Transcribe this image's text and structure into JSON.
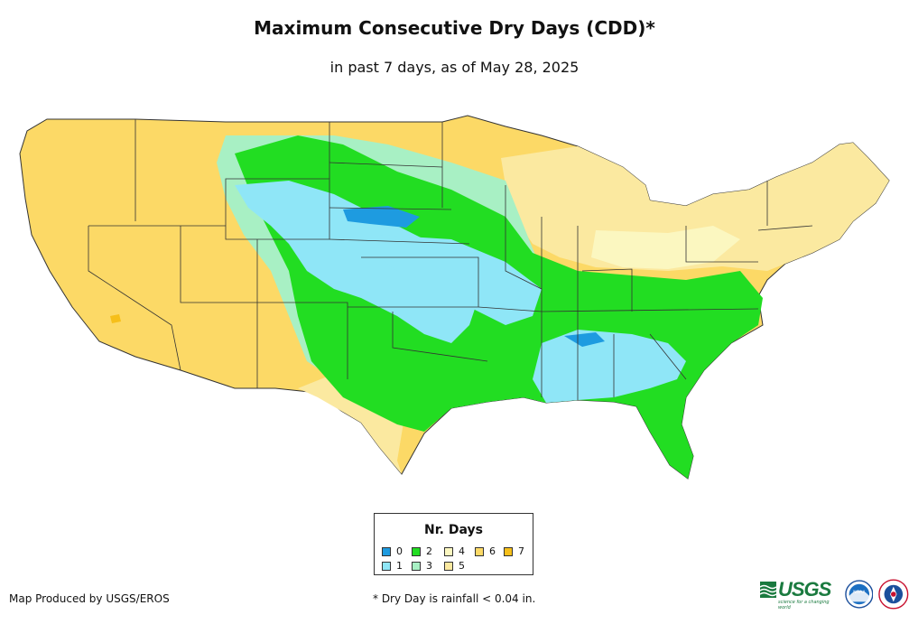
{
  "title": "Maximum Consecutive Dry Days (CDD)*",
  "subtitle": "in past 7 days, as of May 28, 2025",
  "legend": {
    "title": "Nr. Days",
    "items": [
      {
        "label": "0",
        "color": "#1e9be0"
      },
      {
        "label": "1",
        "color": "#8fe6f7"
      },
      {
        "label": "2",
        "color": "#22dd22"
      },
      {
        "label": "3",
        "color": "#a8f0c4"
      },
      {
        "label": "4",
        "color": "#fbf7c0"
      },
      {
        "label": "5",
        "color": "#fbe9a0"
      },
      {
        "label": "6",
        "color": "#fcd966"
      },
      {
        "label": "7",
        "color": "#f6bf1a"
      }
    ]
  },
  "credit": "Map Produced by USGS/EROS",
  "footnote": "* Dry Day is rainfall < 0.04 in.",
  "logos": {
    "usgs": "USGS",
    "usgs_tagline": "science for a changing world",
    "noaa": "NOAA"
  }
}
